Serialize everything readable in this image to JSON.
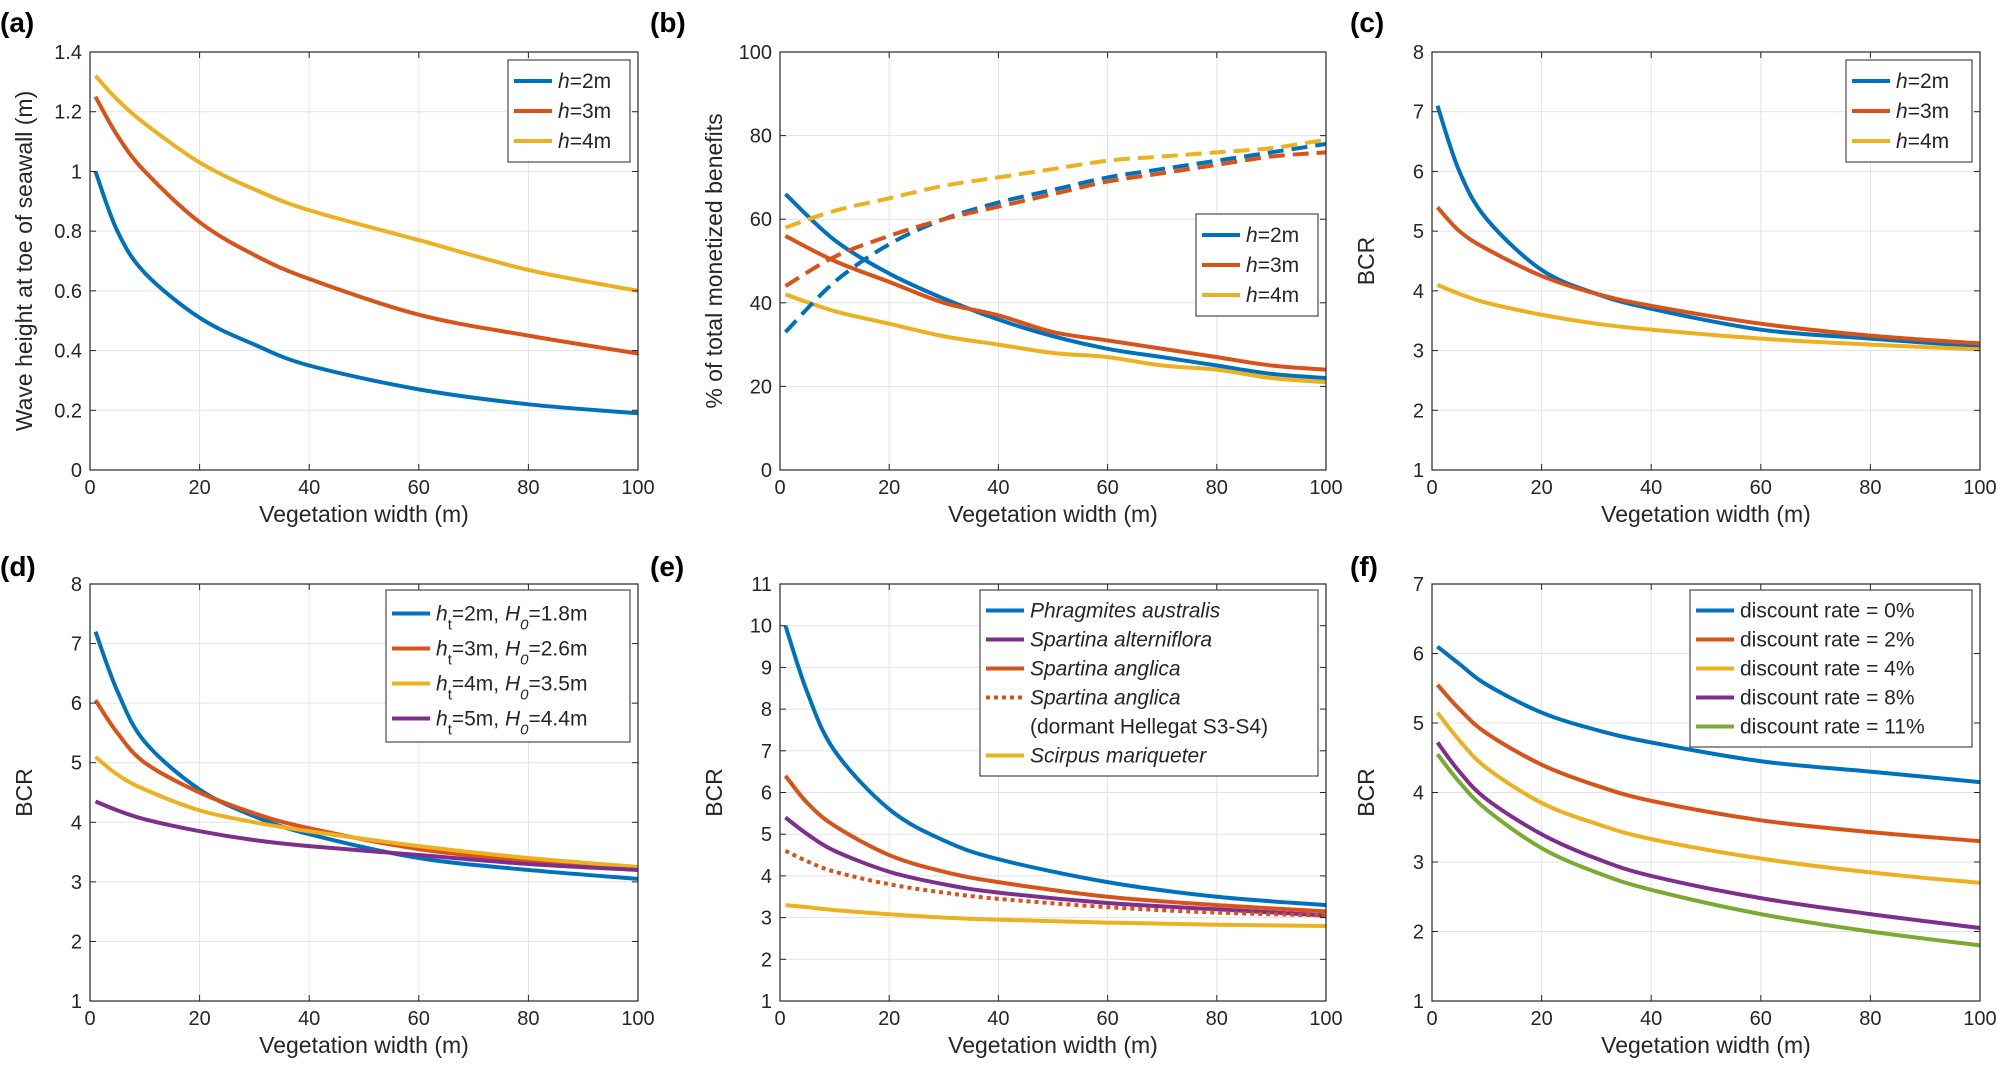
{
  "colors": {
    "blue": "#0072BD",
    "orange": "#D95319",
    "yellow": "#EDB120",
    "purple": "#7E2F8E",
    "green": "#77AC30"
  },
  "chart_data": [
    {
      "panel": "(a)",
      "type": "line",
      "xlabel": "Vegetation width (m)",
      "ylabel": "Wave height at toe of seawall (m)",
      "xlim": [
        0,
        100
      ],
      "ylim": [
        0,
        1.4
      ],
      "xticks": [
        0,
        20,
        40,
        60,
        80,
        100
      ],
      "yticks": [
        0,
        0.2,
        0.4,
        0.6,
        0.8,
        1,
        1.2,
        1.4
      ],
      "grid": true,
      "legend_position": "top-right",
      "series": [
        {
          "name": "h=2m",
          "label_italic": "h",
          "label_rest": "=2m",
          "color": "blue",
          "style": "solid",
          "x": [
            1,
            5,
            10,
            20,
            30,
            40,
            60,
            80,
            100
          ],
          "y": [
            1.0,
            0.8,
            0.66,
            0.51,
            0.42,
            0.35,
            0.27,
            0.22,
            0.19
          ]
        },
        {
          "name": "h=3m",
          "label_italic": "h",
          "label_rest": "=3m",
          "color": "orange",
          "style": "solid",
          "x": [
            1,
            5,
            10,
            20,
            30,
            40,
            60,
            80,
            100
          ],
          "y": [
            1.25,
            1.12,
            1.0,
            0.83,
            0.72,
            0.64,
            0.52,
            0.45,
            0.39
          ]
        },
        {
          "name": "h=4m",
          "label_italic": "h",
          "label_rest": "=4m",
          "color": "yellow",
          "style": "solid",
          "x": [
            1,
            5,
            10,
            20,
            30,
            40,
            60,
            80,
            100
          ],
          "y": [
            1.32,
            1.24,
            1.16,
            1.03,
            0.94,
            0.87,
            0.77,
            0.67,
            0.6
          ]
        }
      ]
    },
    {
      "panel": "(b)",
      "type": "line",
      "xlabel": "Vegetation width (m)",
      "ylabel": "% of total monetized benefits",
      "xlim": [
        0,
        100
      ],
      "ylim": [
        0,
        100
      ],
      "xticks": [
        0,
        20,
        40,
        60,
        80,
        100
      ],
      "yticks": [
        0,
        20,
        40,
        60,
        80,
        100
      ],
      "grid": true,
      "legend_position": "right",
      "series": [
        {
          "name": "h=2m",
          "label_italic": "h",
          "label_rest": "=2m",
          "color": "blue",
          "style": "solid",
          "x": [
            1,
            10,
            20,
            30,
            40,
            50,
            60,
            70,
            80,
            90,
            100
          ],
          "y": [
            66,
            55,
            47,
            41,
            36,
            32,
            29,
            27,
            25,
            23,
            22
          ]
        },
        {
          "name": "h=3m",
          "label_italic": "h",
          "label_rest": "=3m",
          "color": "orange",
          "style": "solid",
          "x": [
            1,
            10,
            20,
            30,
            40,
            50,
            60,
            70,
            80,
            90,
            100
          ],
          "y": [
            56,
            50,
            45,
            40,
            37,
            33,
            31,
            29,
            27,
            25,
            24
          ]
        },
        {
          "name": "h=4m",
          "label_italic": "h",
          "label_rest": "=4m",
          "color": "yellow",
          "style": "solid",
          "x": [
            1,
            10,
            20,
            30,
            40,
            50,
            60,
            70,
            80,
            90,
            100
          ],
          "y": [
            42,
            38,
            35,
            32,
            30,
            28,
            27,
            25,
            24,
            22,
            21
          ]
        },
        {
          "name": "",
          "color": "blue",
          "style": "dashed",
          "x": [
            1,
            10,
            20,
            30,
            40,
            50,
            60,
            70,
            80,
            90,
            100
          ],
          "y": [
            33,
            45,
            54,
            60,
            64,
            67,
            70,
            72,
            74,
            76,
            78
          ]
        },
        {
          "name": "",
          "color": "orange",
          "style": "dashed",
          "x": [
            1,
            10,
            20,
            30,
            40,
            50,
            60,
            70,
            80,
            90,
            100
          ],
          "y": [
            44,
            51,
            56,
            60,
            63,
            66,
            69,
            71,
            73,
            75,
            76
          ]
        },
        {
          "name": "",
          "color": "yellow",
          "style": "dashed",
          "x": [
            1,
            10,
            20,
            30,
            40,
            50,
            60,
            70,
            80,
            90,
            100
          ],
          "y": [
            58,
            62,
            65,
            68,
            70,
            72,
            74,
            75,
            76,
            77,
            79
          ]
        }
      ]
    },
    {
      "panel": "(c)",
      "type": "line",
      "xlabel": "Vegetation width (m)",
      "ylabel": "BCR",
      "xlim": [
        0,
        100
      ],
      "ylim": [
        1,
        8
      ],
      "xticks": [
        0,
        20,
        40,
        60,
        80,
        100
      ],
      "yticks": [
        1,
        2,
        3,
        4,
        5,
        6,
        7,
        8
      ],
      "grid": true,
      "legend_position": "top-right",
      "series": [
        {
          "name": "h=2m",
          "label_italic": "h",
          "label_rest": "=2m",
          "color": "blue",
          "style": "solid",
          "x": [
            1,
            5,
            10,
            20,
            30,
            40,
            60,
            80,
            100
          ],
          "y": [
            7.1,
            6.0,
            5.2,
            4.35,
            3.95,
            3.7,
            3.35,
            3.2,
            3.07
          ]
        },
        {
          "name": "h=3m",
          "label_italic": "h",
          "label_rest": "=3m",
          "color": "orange",
          "style": "solid",
          "x": [
            1,
            5,
            10,
            20,
            30,
            40,
            60,
            80,
            100
          ],
          "y": [
            5.4,
            5.0,
            4.7,
            4.25,
            3.95,
            3.75,
            3.45,
            3.25,
            3.12
          ]
        },
        {
          "name": "h=4m",
          "label_italic": "h",
          "label_rest": "=4m",
          "color": "yellow",
          "style": "solid",
          "x": [
            1,
            5,
            10,
            20,
            30,
            40,
            60,
            80,
            100
          ],
          "y": [
            4.1,
            3.95,
            3.8,
            3.6,
            3.45,
            3.35,
            3.2,
            3.1,
            3.02
          ]
        }
      ]
    },
    {
      "panel": "(d)",
      "type": "line",
      "xlabel": "Vegetation width (m)",
      "ylabel": "BCR",
      "xlim": [
        0,
        100
      ],
      "ylim": [
        1,
        8
      ],
      "xticks": [
        0,
        20,
        40,
        60,
        80,
        100
      ],
      "yticks": [
        1,
        2,
        3,
        4,
        5,
        6,
        7,
        8
      ],
      "grid": true,
      "legend_position": "top-right",
      "series": [
        {
          "name": "ht=2m, H0=1.8m",
          "legend_parts": [
            [
              "i",
              "h"
            ],
            [
              "sub",
              "t"
            ],
            [
              "n",
              "=2m,  "
            ],
            [
              "i",
              "H"
            ],
            [
              "isub",
              "0"
            ],
            [
              "n",
              "=1.8m"
            ]
          ],
          "color": "blue",
          "style": "solid",
          "x": [
            1,
            5,
            10,
            20,
            30,
            40,
            60,
            80,
            100
          ],
          "y": [
            7.2,
            6.2,
            5.35,
            4.55,
            4.1,
            3.8,
            3.4,
            3.2,
            3.05
          ]
        },
        {
          "name": "ht=3m, H0=2.6m",
          "legend_parts": [
            [
              "i",
              "h"
            ],
            [
              "sub",
              "t"
            ],
            [
              "n",
              "=3m,  "
            ],
            [
              "i",
              "H"
            ],
            [
              "isub",
              "0"
            ],
            [
              "n",
              "=2.6m"
            ]
          ],
          "color": "orange",
          "style": "solid",
          "x": [
            1,
            5,
            10,
            20,
            30,
            40,
            60,
            80,
            100
          ],
          "y": [
            6.05,
            5.5,
            5.0,
            4.5,
            4.15,
            3.9,
            3.55,
            3.35,
            3.2
          ]
        },
        {
          "name": "ht=4m, H0=3.5m",
          "legend_parts": [
            [
              "i",
              "h"
            ],
            [
              "sub",
              "t"
            ],
            [
              "n",
              "=4m,  "
            ],
            [
              "i",
              "H"
            ],
            [
              "isub",
              "0"
            ],
            [
              "n",
              "=3.5m"
            ]
          ],
          "color": "yellow",
          "style": "solid",
          "x": [
            1,
            5,
            10,
            20,
            30,
            40,
            60,
            80,
            100
          ],
          "y": [
            5.1,
            4.8,
            4.55,
            4.2,
            4.0,
            3.85,
            3.6,
            3.4,
            3.25
          ]
        },
        {
          "name": "ht=5m, H0=4.4m",
          "legend_parts": [
            [
              "i",
              "h"
            ],
            [
              "sub",
              "t"
            ],
            [
              "n",
              "=5m,  "
            ],
            [
              "i",
              "H"
            ],
            [
              "isub",
              "0"
            ],
            [
              "n",
              "=4.4m"
            ]
          ],
          "color": "purple",
          "style": "solid",
          "x": [
            1,
            5,
            10,
            20,
            30,
            40,
            60,
            80,
            100
          ],
          "y": [
            4.35,
            4.2,
            4.05,
            3.85,
            3.7,
            3.6,
            3.45,
            3.3,
            3.2
          ]
        }
      ]
    },
    {
      "panel": "(e)",
      "type": "line",
      "xlabel": "Vegetation width (m)",
      "ylabel": "BCR",
      "xlim": [
        0,
        100
      ],
      "ylim": [
        1,
        11
      ],
      "xticks": [
        0,
        20,
        40,
        60,
        80,
        100
      ],
      "yticks": [
        1,
        2,
        3,
        4,
        5,
        6,
        7,
        8,
        9,
        10,
        11
      ],
      "grid": true,
      "legend_position": "top-right",
      "series": [
        {
          "name": "Phragmites australis",
          "legend_parts": [
            [
              "i",
              "Phragmites australis"
            ]
          ],
          "color": "blue",
          "style": "solid",
          "x": [
            1,
            5,
            10,
            20,
            30,
            40,
            60,
            80,
            100
          ],
          "y": [
            10.0,
            8.4,
            7.0,
            5.6,
            4.85,
            4.4,
            3.85,
            3.5,
            3.3
          ]
        },
        {
          "name": "Spartina alterniflora",
          "legend_parts": [
            [
              "i",
              "Spartina alterniflora"
            ]
          ],
          "color": "purple",
          "style": "solid",
          "x": [
            1,
            5,
            10,
            20,
            30,
            40,
            60,
            80,
            100
          ],
          "y": [
            5.4,
            5.0,
            4.6,
            4.1,
            3.8,
            3.6,
            3.35,
            3.2,
            3.05
          ]
        },
        {
          "name": "Spartina anglica",
          "legend_parts": [
            [
              "i",
              "Spartina anglica"
            ]
          ],
          "color": "orange",
          "style": "solid",
          "x": [
            1,
            5,
            10,
            20,
            30,
            40,
            60,
            80,
            100
          ],
          "y": [
            6.4,
            5.75,
            5.2,
            4.5,
            4.1,
            3.85,
            3.5,
            3.3,
            3.15
          ]
        },
        {
          "name": "Spartina anglica (dormant Hellegat S3-S4)",
          "legend_parts": [
            [
              "i",
              "Spartina anglica"
            ]
          ],
          "legend_line2": "(dormant Hellegat S3-S4)",
          "color": "orange",
          "style": "dotted",
          "x": [
            1,
            5,
            10,
            20,
            30,
            40,
            60,
            80,
            100
          ],
          "y": [
            4.6,
            4.35,
            4.1,
            3.8,
            3.6,
            3.45,
            3.25,
            3.12,
            3.05
          ]
        },
        {
          "name": "Scirpus mariqueter",
          "legend_parts": [
            [
              "i",
              "Scirpus mariqueter"
            ]
          ],
          "color": "yellow",
          "style": "solid",
          "x": [
            1,
            5,
            10,
            20,
            30,
            40,
            60,
            80,
            100
          ],
          "y": [
            3.3,
            3.25,
            3.18,
            3.08,
            3.0,
            2.95,
            2.88,
            2.83,
            2.8
          ]
        }
      ]
    },
    {
      "panel": "(f)",
      "type": "line",
      "xlabel": "Vegetation width (m)",
      "ylabel": "BCR",
      "xlim": [
        0,
        100
      ],
      "ylim": [
        1,
        7
      ],
      "xticks": [
        0,
        20,
        40,
        60,
        80,
        100
      ],
      "yticks": [
        1,
        2,
        3,
        4,
        5,
        6,
        7
      ],
      "grid": true,
      "legend_position": "top-right",
      "series": [
        {
          "name": "discount rate = 0%",
          "legend_parts": [
            [
              "n",
              "discount rate = 0%"
            ]
          ],
          "color": "blue",
          "style": "solid",
          "x": [
            1,
            5,
            10,
            20,
            30,
            40,
            60,
            80,
            100
          ],
          "y": [
            6.1,
            5.85,
            5.55,
            5.15,
            4.9,
            4.72,
            4.45,
            4.3,
            4.15
          ]
        },
        {
          "name": "discount rate = 2%",
          "legend_parts": [
            [
              "n",
              "discount rate = 2%"
            ]
          ],
          "color": "orange",
          "style": "solid",
          "x": [
            1,
            5,
            10,
            20,
            30,
            40,
            60,
            80,
            100
          ],
          "y": [
            5.55,
            5.2,
            4.85,
            4.4,
            4.1,
            3.88,
            3.6,
            3.43,
            3.3
          ]
        },
        {
          "name": "discount rate = 4%",
          "legend_parts": [
            [
              "n",
              "discount rate = 4%"
            ]
          ],
          "color": "yellow",
          "style": "solid",
          "x": [
            1,
            5,
            10,
            20,
            30,
            40,
            60,
            80,
            100
          ],
          "y": [
            5.15,
            4.75,
            4.35,
            3.85,
            3.55,
            3.33,
            3.05,
            2.85,
            2.7
          ]
        },
        {
          "name": "discount rate = 8%",
          "legend_parts": [
            [
              "n",
              "discount rate = 8%"
            ]
          ],
          "color": "purple",
          "style": "solid",
          "x": [
            1,
            5,
            10,
            20,
            30,
            40,
            60,
            80,
            100
          ],
          "y": [
            4.72,
            4.3,
            3.9,
            3.4,
            3.05,
            2.8,
            2.48,
            2.25,
            2.05
          ]
        },
        {
          "name": "discount rate = 11%",
          "legend_parts": [
            [
              "n",
              "discount rate = 11%"
            ]
          ],
          "color": "green",
          "style": "solid",
          "x": [
            1,
            5,
            10,
            20,
            30,
            40,
            60,
            80,
            100
          ],
          "y": [
            4.55,
            4.15,
            3.75,
            3.2,
            2.85,
            2.6,
            2.25,
            2.0,
            1.8
          ]
        }
      ]
    }
  ]
}
